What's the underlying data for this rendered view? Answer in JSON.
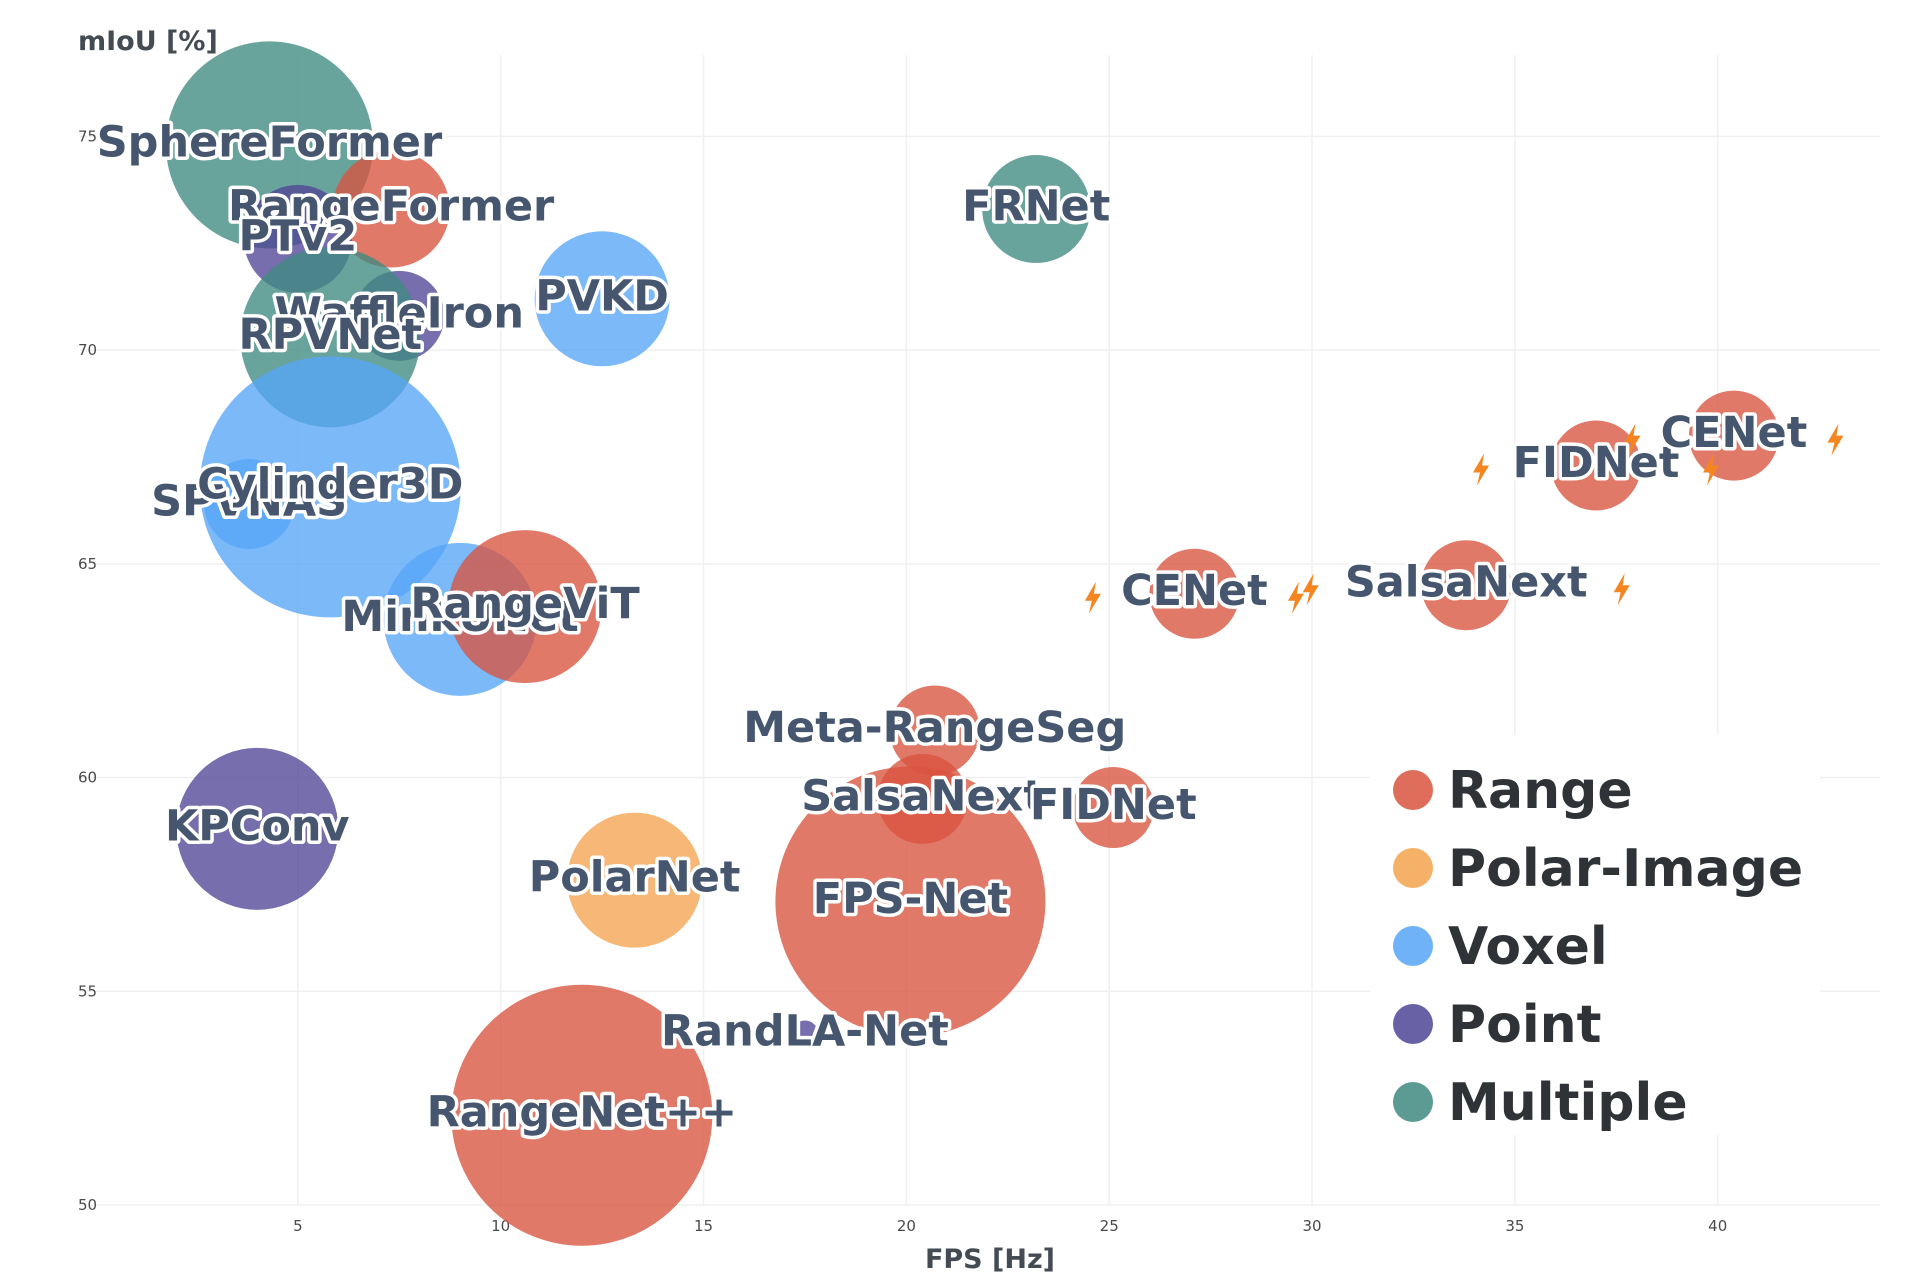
{
  "colors": {
    "Range": "#d9533f",
    "Polar-Image": "#f5a34f",
    "Voxel": "#56a5f7",
    "Point": "#4f4596",
    "Multiple": "#3f8a80",
    "bolt": "#f5861f"
  },
  "chart_data": {
    "type": "scatter",
    "variant": "bubble",
    "xlabel": "FPS [Hz]",
    "ylabel": "mIoU [%]",
    "xlim": [
      0,
      44
    ],
    "ylim": [
      50,
      75.5
    ],
    "xticks": [
      5,
      10,
      15,
      20,
      25,
      30,
      35,
      40
    ],
    "yticks": [
      50,
      55,
      60,
      65,
      70,
      75
    ],
    "grid": true,
    "legend_position": "bottom-right",
    "legend": [
      "Range",
      "Polar-Image",
      "Voxel",
      "Point",
      "Multiple"
    ],
    "points": [
      {
        "name": "SphereFormer",
        "category": "Multiple",
        "x": 4.3,
        "y": 74.8,
        "size": 2.3
      },
      {
        "name": "RangeFormer",
        "category": "Range",
        "x": 7.3,
        "y": 73.3,
        "size": 1.3
      },
      {
        "name": "PTv2",
        "category": "Point",
        "x": 5.0,
        "y": 72.6,
        "size": 1.2
      },
      {
        "name": "WaffleIron",
        "category": "Point",
        "x": 7.5,
        "y": 70.8,
        "size": 1.0
      },
      {
        "name": "RPVNet",
        "category": "Multiple",
        "x": 5.8,
        "y": 70.3,
        "size": 2.0
      },
      {
        "name": "PVKD",
        "category": "Voxel",
        "x": 12.5,
        "y": 71.2,
        "size": 1.5
      },
      {
        "name": "FRNet",
        "category": "Multiple",
        "x": 23.2,
        "y": 73.3,
        "size": 1.2
      },
      {
        "name": "SPVNAS",
        "category": "Voxel",
        "x": 3.8,
        "y": 66.4,
        "size": 1.0
      },
      {
        "name": "Cylinder3D",
        "category": "Voxel",
        "x": 5.8,
        "y": 66.8,
        "size": 2.9
      },
      {
        "name": "MinkUNet",
        "category": "Voxel",
        "x": 9.0,
        "y": 63.7,
        "size": 1.7
      },
      {
        "name": "RangeViT",
        "category": "Range",
        "x": 10.6,
        "y": 64.0,
        "size": 1.7
      },
      {
        "name": "CENet",
        "category": "Range",
        "x": 27.1,
        "y": 64.3,
        "size": 1.0,
        "fast": true
      },
      {
        "name": "SalsaNext",
        "category": "Range",
        "x": 33.8,
        "y": 64.5,
        "size": 1.0,
        "fast": true
      },
      {
        "name": "FIDNet",
        "category": "Range",
        "x": 37.0,
        "y": 67.3,
        "size": 1.0,
        "fast": true
      },
      {
        "name": "CENet",
        "category": "Range",
        "x": 40.4,
        "y": 68.0,
        "size": 1.0,
        "fast": true
      },
      {
        "name": "Meta-RangeSeg",
        "category": "Range",
        "x": 20.7,
        "y": 61.1,
        "size": 1.0
      },
      {
        "name": "SalsaNext",
        "category": "Range",
        "x": 20.4,
        "y": 59.5,
        "size": 1.0
      },
      {
        "name": "FIDNet",
        "category": "Range",
        "x": 25.1,
        "y": 59.3,
        "size": 0.9
      },
      {
        "name": "KPConv",
        "category": "Point",
        "x": 4.0,
        "y": 58.8,
        "size": 1.8
      },
      {
        "name": "PolarNet",
        "category": "Polar-Image",
        "x": 13.3,
        "y": 57.6,
        "size": 1.5
      },
      {
        "name": "FPS-Net",
        "category": "Range",
        "x": 20.1,
        "y": 57.1,
        "size": 3.0
      },
      {
        "name": "RandLA-Net",
        "category": "Point",
        "x": 17.5,
        "y": 54.0,
        "size": 0.3
      },
      {
        "name": "RangeNet++",
        "category": "Range",
        "x": 12.0,
        "y": 52.1,
        "size": 2.9
      }
    ]
  }
}
